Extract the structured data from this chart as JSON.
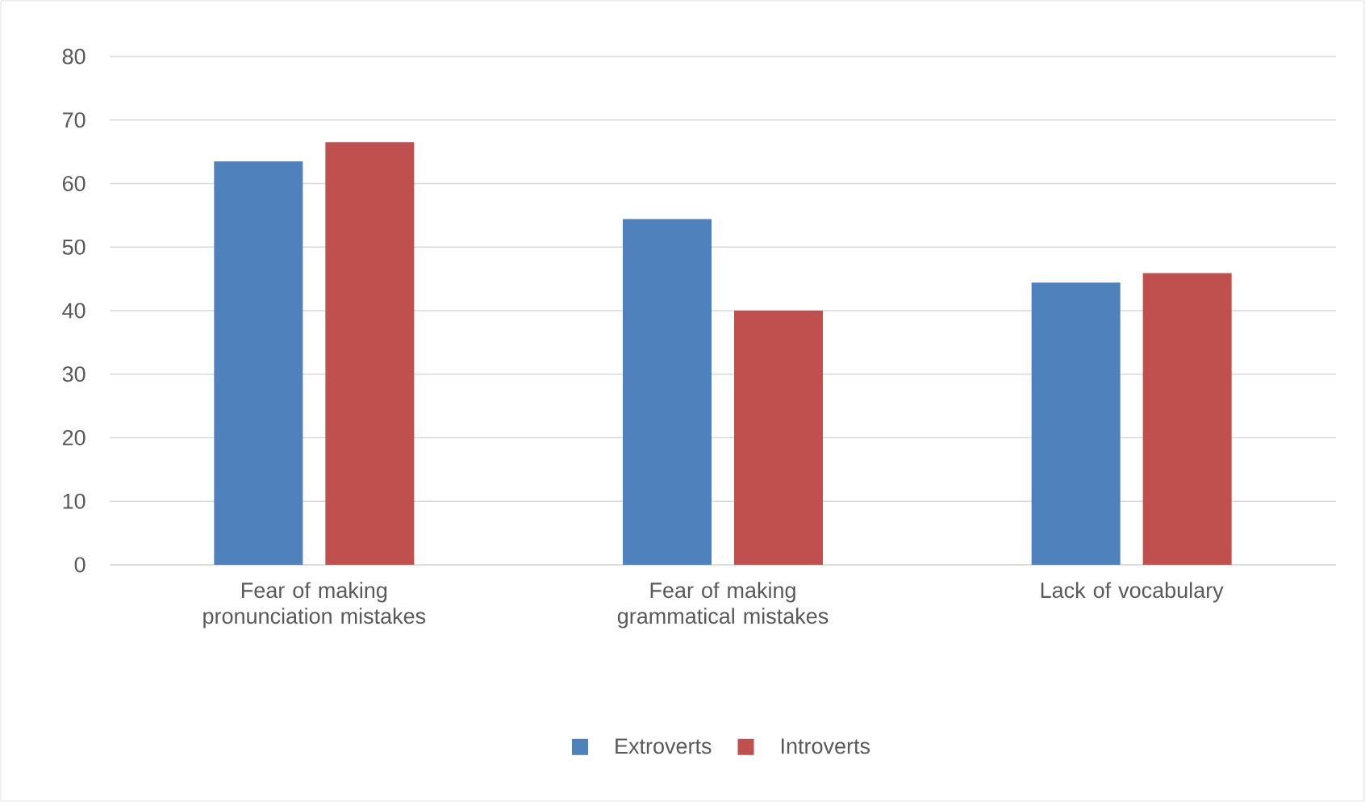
{
  "chart_data": {
    "type": "bar",
    "categories": [
      "Fear of making pronunciation mistakes",
      "Fear of making grammatical mistakes",
      "Lack of vocabulary"
    ],
    "series": [
      {
        "name": "Extroverts",
        "color": "#4f81bd",
        "values": [
          63.5,
          54.4,
          44.4
        ]
      },
      {
        "name": "Introverts",
        "color": "#c0504d",
        "values": [
          66.5,
          40,
          45.9
        ]
      }
    ],
    "ylim": [
      0,
      80
    ],
    "yticks": [
      0,
      10,
      20,
      30,
      40,
      50,
      60,
      70,
      80
    ],
    "grid": "y",
    "legend": "bottom"
  }
}
